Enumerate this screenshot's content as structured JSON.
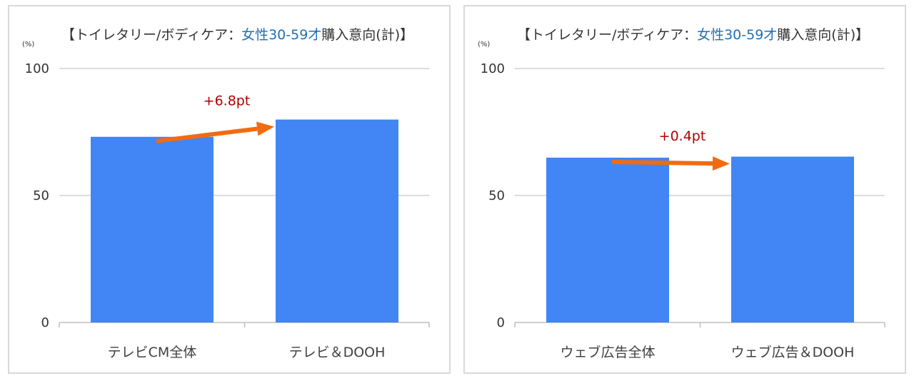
{
  "chart_data": [
    {
      "type": "bar",
      "title": "【トイレタリー/ボディケア：女性30-59才購入意向(計)】",
      "title_parts": [
        "【トイレタリー/ボディケア：",
        "女性30-59才",
        "購入意向(計)】"
      ],
      "unit": "(%)",
      "categories": [
        "テレビCM全体",
        "テレビ＆DOOH"
      ],
      "values": [
        73.1,
        79.9
      ],
      "ylim": [
        0,
        100
      ],
      "yticks": [
        0,
        50,
        100
      ],
      "annotation": "+6.8pt",
      "grid": true,
      "bar_color": "#4285f4",
      "arrow_color": "#f26b11",
      "highlight_color": "#1f6fb5"
    },
    {
      "type": "bar",
      "title": "【トイレタリー/ボディケア：女性30-59才購入意向(計)】",
      "title_parts": [
        "【トイレタリー/ボディケア：",
        "女性30-59才",
        "購入意向(計)】"
      ],
      "unit": "(%)",
      "categories": [
        "ウェブ広告全体",
        "ウェブ広告＆DOOH"
      ],
      "values": [
        64.9,
        65.3
      ],
      "ylim": [
        0,
        100
      ],
      "yticks": [
        0,
        50,
        100
      ],
      "annotation": "+0.4pt",
      "grid": true,
      "bar_color": "#4285f4",
      "arrow_color": "#f26b11",
      "highlight_color": "#1f6fb5"
    }
  ]
}
